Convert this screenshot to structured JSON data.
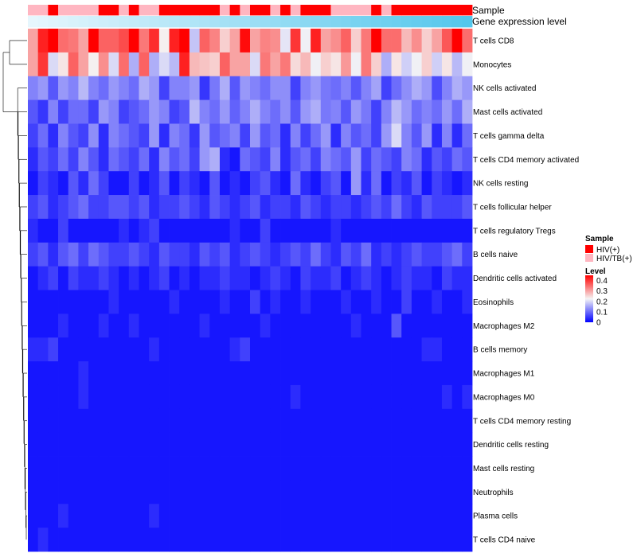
{
  "chart_data": {
    "type": "heatmap",
    "annotations": {
      "sample_label": "Sample",
      "expression_label": "Gene expression level"
    },
    "rows": [
      "T cells CD8",
      "Monocytes",
      "NK cells activated",
      "Mast cells activated",
      "T cells gamma delta",
      "T cells CD4 memory activated",
      "NK cells resting",
      "T cells follicular helper",
      "T cells regulatory  Tregs",
      "B cells naive",
      "Dendritic cells activated",
      "Eosinophils",
      "Macrophages M2",
      "B cells memory",
      "Macrophages M1",
      "Macrophages M0",
      "T cells CD4 memory resting",
      "Dendritic cells resting",
      "Mast cells resting",
      "Neutrophils",
      "Plasma cells",
      "T cells CD4 naive"
    ],
    "n_columns": 44,
    "sample_groups": [
      "HIV/TB(+)",
      "HIV/TB(+)",
      "HIV(+)",
      "HIV/TB(+)",
      "HIV/TB(+)",
      "HIV/TB(+)",
      "HIV/TB(+)",
      "HIV(+)",
      "HIV(+)",
      "HIV/TB(+)",
      "HIV(+)",
      "HIV/TB(+)",
      "HIV/TB(+)",
      "HIV(+)",
      "HIV(+)",
      "HIV(+)",
      "HIV(+)",
      "HIV(+)",
      "HIV(+)",
      "HIV/TB(+)",
      "HIV(+)",
      "HIV/TB(+)",
      "HIV(+)",
      "HIV(+)",
      "HIV/TB(+)",
      "HIV(+)",
      "HIV/TB(+)",
      "HIV(+)",
      "HIV(+)",
      "HIV(+)",
      "HIV/TB(+)",
      "HIV/TB(+)",
      "HIV/TB(+)",
      "HIV/TB(+)",
      "HIV(+)",
      "HIV/TB(+)",
      "HIV(+)",
      "HIV(+)",
      "HIV(+)",
      "HIV(+)",
      "HIV(+)",
      "HIV(+)",
      "HIV(+)",
      "HIV(+)"
    ],
    "values": [
      [
        0.3,
        0.42,
        0.45,
        0.35,
        0.34,
        0.3,
        0.45,
        0.36,
        0.36,
        0.38,
        0.45,
        0.34,
        0.41,
        0.23,
        0.42,
        0.45,
        0.18,
        0.36,
        0.33,
        0.26,
        0.3,
        0.44,
        0.3,
        0.33,
        0.32,
        0.21,
        0.4,
        0.22,
        0.42,
        0.3,
        0.32,
        0.36,
        0.26,
        0.34,
        0.45,
        0.35,
        0.35,
        0.28,
        0.32,
        0.26,
        0.3,
        0.37,
        0.45,
        0.35
      ],
      [
        0.3,
        0.4,
        0.2,
        0.24,
        0.36,
        0.3,
        0.23,
        0.32,
        0.2,
        0.35,
        0.16,
        0.36,
        0.16,
        0.2,
        0.17,
        0.42,
        0.28,
        0.27,
        0.26,
        0.36,
        0.3,
        0.3,
        0.2,
        0.34,
        0.3,
        0.34,
        0.25,
        0.28,
        0.22,
        0.26,
        0.24,
        0.31,
        0.22,
        0.34,
        0.26,
        0.16,
        0.24,
        0.19,
        0.22,
        0.26,
        0.19,
        0.24,
        0.17,
        0.22
      ],
      [
        0.12,
        0.14,
        0.08,
        0.14,
        0.12,
        0.17,
        0.12,
        0.1,
        0.14,
        0.12,
        0.1,
        0.16,
        0.14,
        0.06,
        0.12,
        0.12,
        0.14,
        0.05,
        0.11,
        0.16,
        0.08,
        0.14,
        0.12,
        0.1,
        0.13,
        0.13,
        0.06,
        0.12,
        0.14,
        0.11,
        0.1,
        0.12,
        0.08,
        0.12,
        0.15,
        0.06,
        0.1,
        0.13,
        0.16,
        0.14,
        0.07,
        0.12,
        0.16,
        0.14
      ],
      [
        0.08,
        0.05,
        0.12,
        0.06,
        0.1,
        0.1,
        0.06,
        0.14,
        0.12,
        0.06,
        0.08,
        0.1,
        0.14,
        0.12,
        0.06,
        0.08,
        0.17,
        0.12,
        0.1,
        0.14,
        0.09,
        0.12,
        0.16,
        0.12,
        0.1,
        0.13,
        0.08,
        0.14,
        0.16,
        0.11,
        0.12,
        0.08,
        0.14,
        0.11,
        0.06,
        0.12,
        0.17,
        0.14,
        0.1,
        0.12,
        0.1,
        0.14,
        0.1,
        0.16
      ],
      [
        0.06,
        0.1,
        0.04,
        0.12,
        0.08,
        0.06,
        0.13,
        0.04,
        0.12,
        0.1,
        0.08,
        0.06,
        0.14,
        0.04,
        0.12,
        0.1,
        0.05,
        0.14,
        0.08,
        0.1,
        0.12,
        0.06,
        0.14,
        0.08,
        0.1,
        0.04,
        0.12,
        0.06,
        0.1,
        0.14,
        0.04,
        0.12,
        0.08,
        0.1,
        0.06,
        0.14,
        0.2,
        0.12,
        0.08,
        0.14,
        0.04,
        0.12,
        0.04,
        0.1
      ],
      [
        0.04,
        0.08,
        0.06,
        0.1,
        0.06,
        0.12,
        0.08,
        0.04,
        0.1,
        0.08,
        0.06,
        0.1,
        0.04,
        0.12,
        0.08,
        0.1,
        0.06,
        0.14,
        0.16,
        0.04,
        0.02,
        0.1,
        0.08,
        0.06,
        0.12,
        0.04,
        0.08,
        0.1,
        0.06,
        0.12,
        0.1,
        0.08,
        0.14,
        0.06,
        0.1,
        0.08,
        0.06,
        0.12,
        0.1,
        0.04,
        0.08,
        0.06,
        0.1,
        0.08
      ],
      [
        0.02,
        0.06,
        0.04,
        0.02,
        0.08,
        0.04,
        0.1,
        0.06,
        0.02,
        0.02,
        0.06,
        0.02,
        0.04,
        0.08,
        0.02,
        0.06,
        0.04,
        0.02,
        0.08,
        0.02,
        0.04,
        0.02,
        0.06,
        0.08,
        0.04,
        0.02,
        0.1,
        0.04,
        0.02,
        0.06,
        0.08,
        0.02,
        0.14,
        0.04,
        0.1,
        0.02,
        0.06,
        0.04,
        0.08,
        0.02,
        0.06,
        0.04,
        0.02,
        0.04
      ],
      [
        0.06,
        0.08,
        0.04,
        0.06,
        0.08,
        0.1,
        0.06,
        0.06,
        0.08,
        0.08,
        0.06,
        0.08,
        0.04,
        0.06,
        0.06,
        0.08,
        0.06,
        0.04,
        0.08,
        0.06,
        0.04,
        0.06,
        0.08,
        0.04,
        0.06,
        0.06,
        0.04,
        0.08,
        0.06,
        0.04,
        0.06,
        0.06,
        0.04,
        0.06,
        0.08,
        0.06,
        0.1,
        0.06,
        0.04,
        0.08,
        0.06,
        0.06,
        0.06,
        0.08
      ],
      [
        0.04,
        0.02,
        0.02,
        0.06,
        0.02,
        0.02,
        0.02,
        0.02,
        0.02,
        0.04,
        0.02,
        0.04,
        0.06,
        0.02,
        0.02,
        0.02,
        0.02,
        0.02,
        0.02,
        0.02,
        0.04,
        0.02,
        0.02,
        0.06,
        0.02,
        0.02,
        0.02,
        0.02,
        0.02,
        0.02,
        0.04,
        0.02,
        0.02,
        0.02,
        0.02,
        0.02,
        0.02,
        0.02,
        0.02,
        0.02,
        0.02,
        0.02,
        0.02,
        0.02
      ],
      [
        0.06,
        0.08,
        0.04,
        0.08,
        0.1,
        0.06,
        0.1,
        0.08,
        0.06,
        0.06,
        0.08,
        0.06,
        0.04,
        0.08,
        0.06,
        0.06,
        0.04,
        0.08,
        0.06,
        0.08,
        0.04,
        0.06,
        0.08,
        0.06,
        0.04,
        0.06,
        0.08,
        0.06,
        0.1,
        0.06,
        0.04,
        0.08,
        0.06,
        0.1,
        0.04,
        0.06,
        0.04,
        0.06,
        0.08,
        0.06,
        0.06,
        0.08,
        0.1,
        0.06
      ],
      [
        0.02,
        0.04,
        0.06,
        0.02,
        0.06,
        0.04,
        0.04,
        0.06,
        0.04,
        0.02,
        0.04,
        0.02,
        0.04,
        0.06,
        0.02,
        0.04,
        0.02,
        0.04,
        0.04,
        0.06,
        0.04,
        0.04,
        0.02,
        0.04,
        0.06,
        0.04,
        0.02,
        0.06,
        0.04,
        0.04,
        0.06,
        0.02,
        0.04,
        0.06,
        0.04,
        0.02,
        0.04,
        0.06,
        0.04,
        0.04,
        0.02,
        0.06,
        0.04,
        0.04
      ],
      [
        0.02,
        0.02,
        0.02,
        0.02,
        0.02,
        0.02,
        0.02,
        0.02,
        0.04,
        0.02,
        0.02,
        0.02,
        0.02,
        0.02,
        0.04,
        0.02,
        0.02,
        0.02,
        0.02,
        0.04,
        0.02,
        0.02,
        0.06,
        0.02,
        0.04,
        0.02,
        0.02,
        0.04,
        0.02,
        0.02,
        0.02,
        0.04,
        0.02,
        0.02,
        0.04,
        0.02,
        0.02,
        0.06,
        0.02,
        0.02,
        0.04,
        0.02,
        0.02,
        0.04
      ],
      [
        0.02,
        0.02,
        0.02,
        0.04,
        0.02,
        0.02,
        0.02,
        0.04,
        0.02,
        0.02,
        0.04,
        0.02,
        0.02,
        0.02,
        0.02,
        0.02,
        0.02,
        0.04,
        0.02,
        0.02,
        0.02,
        0.02,
        0.02,
        0.04,
        0.02,
        0.02,
        0.02,
        0.02,
        0.02,
        0.02,
        0.02,
        0.02,
        0.04,
        0.02,
        0.02,
        0.02,
        0.08,
        0.02,
        0.02,
        0.02,
        0.02,
        0.02,
        0.02,
        0.02
      ],
      [
        0.04,
        0.04,
        0.06,
        0.02,
        0.02,
        0.02,
        0.02,
        0.02,
        0.02,
        0.02,
        0.02,
        0.02,
        0.04,
        0.02,
        0.02,
        0.02,
        0.02,
        0.02,
        0.02,
        0.02,
        0.04,
        0.06,
        0.02,
        0.02,
        0.02,
        0.02,
        0.02,
        0.02,
        0.02,
        0.02,
        0.02,
        0.02,
        0.02,
        0.02,
        0.02,
        0.02,
        0.02,
        0.02,
        0.02,
        0.04,
        0.04,
        0.02,
        0.02,
        0.02
      ],
      [
        0.02,
        0.02,
        0.02,
        0.02,
        0.02,
        0.04,
        0.02,
        0.02,
        0.02,
        0.02,
        0.02,
        0.02,
        0.02,
        0.02,
        0.02,
        0.02,
        0.02,
        0.02,
        0.02,
        0.02,
        0.02,
        0.02,
        0.02,
        0.02,
        0.02,
        0.02,
        0.02,
        0.02,
        0.02,
        0.02,
        0.02,
        0.02,
        0.02,
        0.02,
        0.02,
        0.02,
        0.02,
        0.02,
        0.02,
        0.02,
        0.02,
        0.02,
        0.02,
        0.02
      ],
      [
        0.02,
        0.02,
        0.02,
        0.02,
        0.02,
        0.04,
        0.02,
        0.02,
        0.02,
        0.02,
        0.02,
        0.02,
        0.02,
        0.02,
        0.02,
        0.02,
        0.02,
        0.02,
        0.02,
        0.02,
        0.02,
        0.02,
        0.02,
        0.02,
        0.02,
        0.02,
        0.04,
        0.02,
        0.02,
        0.02,
        0.02,
        0.02,
        0.02,
        0.02,
        0.02,
        0.02,
        0.02,
        0.02,
        0.02,
        0.02,
        0.02,
        0.04,
        0.02,
        0.04
      ],
      [
        0.02,
        0.02,
        0.02,
        0.02,
        0.02,
        0.02,
        0.02,
        0.02,
        0.02,
        0.02,
        0.02,
        0.02,
        0.02,
        0.02,
        0.02,
        0.02,
        0.02,
        0.02,
        0.02,
        0.02,
        0.02,
        0.02,
        0.02,
        0.02,
        0.02,
        0.02,
        0.02,
        0.02,
        0.02,
        0.02,
        0.02,
        0.02,
        0.02,
        0.02,
        0.02,
        0.02,
        0.02,
        0.02,
        0.02,
        0.02,
        0.02,
        0.02,
        0.02,
        0.02
      ],
      [
        0.02,
        0.02,
        0.02,
        0.02,
        0.02,
        0.02,
        0.02,
        0.02,
        0.02,
        0.02,
        0.02,
        0.02,
        0.02,
        0.02,
        0.02,
        0.02,
        0.02,
        0.02,
        0.02,
        0.02,
        0.02,
        0.02,
        0.02,
        0.02,
        0.02,
        0.02,
        0.02,
        0.02,
        0.02,
        0.02,
        0.02,
        0.02,
        0.02,
        0.02,
        0.02,
        0.02,
        0.02,
        0.02,
        0.02,
        0.02,
        0.02,
        0.02,
        0.02,
        0.02
      ],
      [
        0.02,
        0.02,
        0.02,
        0.02,
        0.02,
        0.02,
        0.02,
        0.02,
        0.02,
        0.02,
        0.02,
        0.02,
        0.02,
        0.02,
        0.02,
        0.02,
        0.02,
        0.02,
        0.02,
        0.02,
        0.02,
        0.02,
        0.02,
        0.02,
        0.02,
        0.02,
        0.02,
        0.02,
        0.02,
        0.02,
        0.02,
        0.02,
        0.02,
        0.02,
        0.02,
        0.02,
        0.02,
        0.02,
        0.02,
        0.02,
        0.02,
        0.02,
        0.02,
        0.02
      ],
      [
        0.02,
        0.02,
        0.02,
        0.02,
        0.02,
        0.02,
        0.02,
        0.02,
        0.02,
        0.02,
        0.02,
        0.02,
        0.02,
        0.02,
        0.02,
        0.02,
        0.02,
        0.02,
        0.02,
        0.02,
        0.02,
        0.02,
        0.02,
        0.02,
        0.02,
        0.02,
        0.02,
        0.02,
        0.02,
        0.02,
        0.02,
        0.02,
        0.02,
        0.02,
        0.02,
        0.02,
        0.02,
        0.02,
        0.02,
        0.02,
        0.02,
        0.02,
        0.02,
        0.02
      ],
      [
        0.02,
        0.02,
        0.02,
        0.04,
        0.02,
        0.02,
        0.02,
        0.02,
        0.02,
        0.02,
        0.02,
        0.02,
        0.04,
        0.02,
        0.02,
        0.02,
        0.02,
        0.02,
        0.02,
        0.02,
        0.02,
        0.02,
        0.02,
        0.02,
        0.02,
        0.02,
        0.02,
        0.02,
        0.02,
        0.02,
        0.02,
        0.02,
        0.02,
        0.02,
        0.02,
        0.02,
        0.02,
        0.02,
        0.02,
        0.02,
        0.02,
        0.02,
        0.02,
        0.02
      ],
      [
        0.02,
        0.04,
        0.02,
        0.02,
        0.02,
        0.02,
        0.02,
        0.02,
        0.02,
        0.02,
        0.02,
        0.02,
        0.02,
        0.02,
        0.02,
        0.02,
        0.02,
        0.02,
        0.02,
        0.02,
        0.02,
        0.02,
        0.02,
        0.02,
        0.02,
        0.02,
        0.02,
        0.02,
        0.02,
        0.02,
        0.02,
        0.02,
        0.02,
        0.02,
        0.02,
        0.02,
        0.02,
        0.02,
        0.02,
        0.02,
        0.02,
        0.02,
        0.02,
        0.02
      ]
    ],
    "expression_level": [
      0.96,
      0.95,
      0.94,
      0.93,
      0.92,
      0.91,
      0.9,
      0.89,
      0.88,
      0.87,
      0.86,
      0.85,
      0.84,
      0.83,
      0.82,
      0.81,
      0.8,
      0.79,
      0.78,
      0.77,
      0.76,
      0.75,
      0.74,
      0.73,
      0.72,
      0.71,
      0.7,
      0.69,
      0.68,
      0.67,
      0.66,
      0.65,
      0.64,
      0.63,
      0.62,
      0.61,
      0.6,
      0.59,
      0.58,
      0.57,
      0.56,
      0.55,
      0.54,
      0.53
    ],
    "legend": {
      "sample_title": "Sample",
      "sample_entries": [
        {
          "label": "HIV(+)",
          "color": "#ff0000"
        },
        {
          "label": "HIV/TB(+)",
          "color": "#ffb6c1"
        }
      ],
      "level_title": "Level",
      "level_ticks": [
        "0.4",
        "0.3",
        "0.2",
        "0.1",
        "0"
      ],
      "level_range": [
        0,
        0.45
      ]
    },
    "colors": {
      "low": "#0000ff",
      "mid": "#f5f5f5",
      "high": "#ff0000",
      "expr_low": "#e6f6fd",
      "expr_high": "#54c7ec"
    }
  }
}
